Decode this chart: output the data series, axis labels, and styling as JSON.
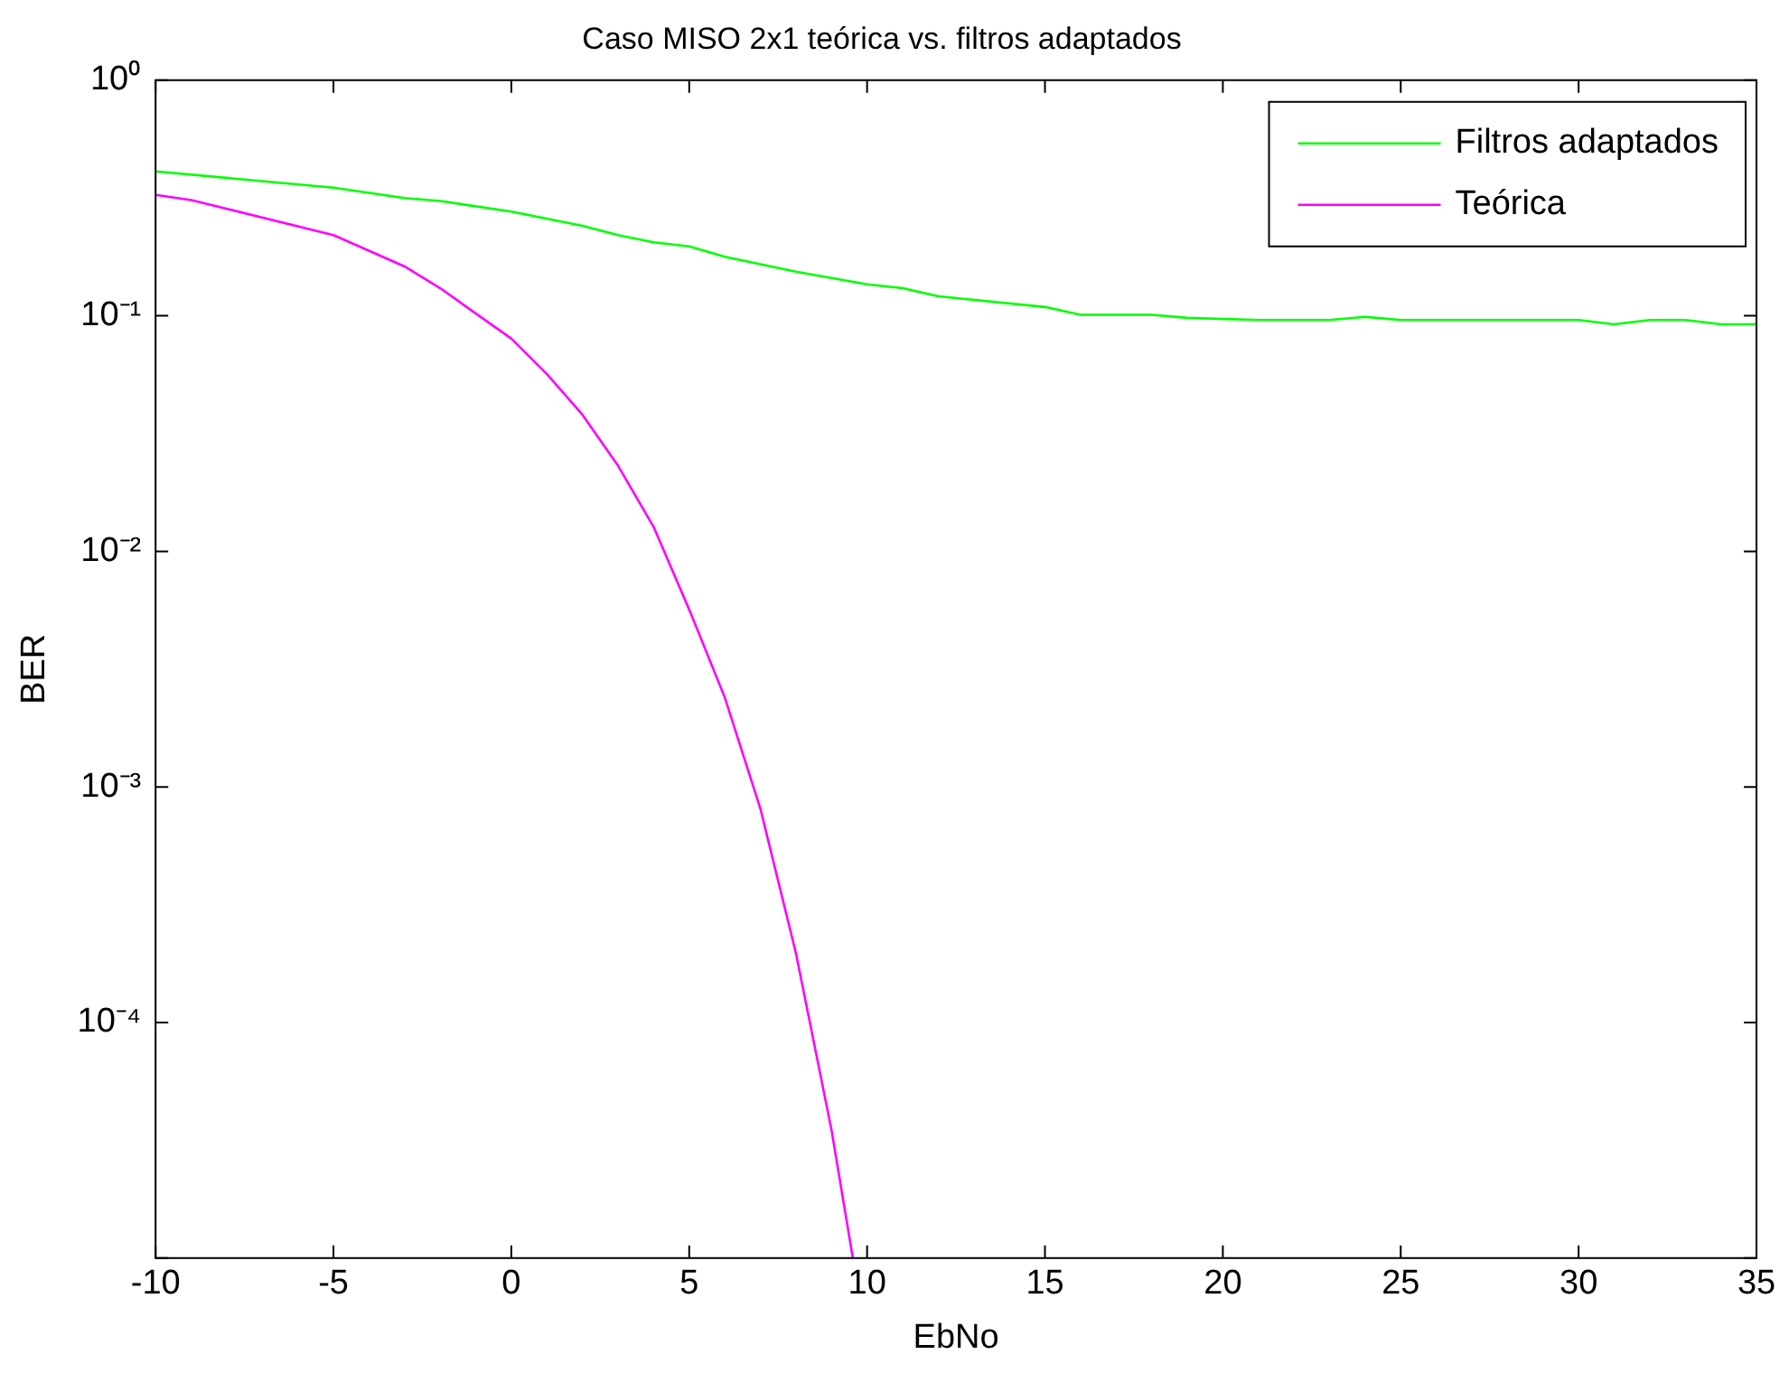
{
  "chart_data": {
    "type": "line",
    "title": "Caso MISO 2x1 teórica vs. filtros adaptados",
    "xlabel": "EbNo",
    "ylabel": "BER",
    "log": "y",
    "xlim": [
      -10,
      35
    ],
    "xticks": [
      -10,
      -5,
      0,
      5,
      10,
      15,
      20,
      25,
      30,
      35
    ],
    "ylim": [
      1e-05,
      1
    ],
    "yticks": [
      {
        "value": 1e-05,
        "label": null
      },
      {
        "value": 0.0001,
        "label": "10⁻⁴"
      },
      {
        "value": 0.001,
        "label": "10⁻³"
      },
      {
        "value": 0.01,
        "label": "10⁻²"
      },
      {
        "value": 0.1,
        "label": "10⁻¹"
      },
      {
        "value": 1,
        "label": "10⁰"
      }
    ],
    "legend": "top right",
    "marker": "none",
    "line_style": "solid",
    "series": [
      {
        "name": "Filtros adaptados",
        "color": "#00ff00",
        "x": [
          -10,
          -5,
          -3,
          -2,
          0,
          2,
          3,
          4,
          5,
          6,
          8,
          10,
          11,
          12,
          15,
          16,
          18,
          19,
          21,
          23,
          24,
          25,
          30,
          31,
          32,
          33,
          34,
          35
        ],
        "values": [
          0.41,
          0.35,
          0.316,
          0.307,
          0.277,
          0.241,
          0.22,
          0.205,
          0.197,
          0.178,
          0.154,
          0.136,
          0.131,
          0.121,
          0.109,
          0.101,
          0.101,
          0.098,
          0.096,
          0.096,
          0.099,
          0.096,
          0.096,
          0.092,
          0.096,
          0.096,
          0.092,
          0.092
        ]
      },
      {
        "name": "Teórica",
        "color": "#ff00ff",
        "x": [
          -10,
          -9,
          -5,
          -3,
          -2,
          0,
          1,
          2,
          3,
          4,
          5,
          6,
          7,
          8,
          9,
          9.6
        ],
        "values": [
          0.326,
          0.31,
          0.22,
          0.162,
          0.131,
          0.08,
          0.0566,
          0.038,
          0.0231,
          0.0127,
          0.00566,
          0.0024,
          0.00081,
          0.000197,
          3.5e-05,
          1e-05
        ]
      }
    ]
  }
}
